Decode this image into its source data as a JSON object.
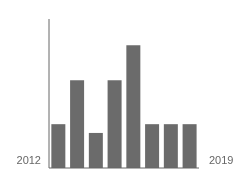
{
  "chart_data": {
    "type": "bar",
    "categories": [
      null,
      null,
      null,
      null,
      null,
      null,
      null,
      null
    ],
    "values": [
      2.5,
      5.0,
      2.0,
      5.0,
      7.0,
      2.5,
      2.5,
      2.5
    ],
    "color": "#6b6b6b",
    "ylim": [
      0,
      8.5
    ],
    "tick_labels": false,
    "annotations": [
      "2012",
      "2019"
    ]
  }
}
